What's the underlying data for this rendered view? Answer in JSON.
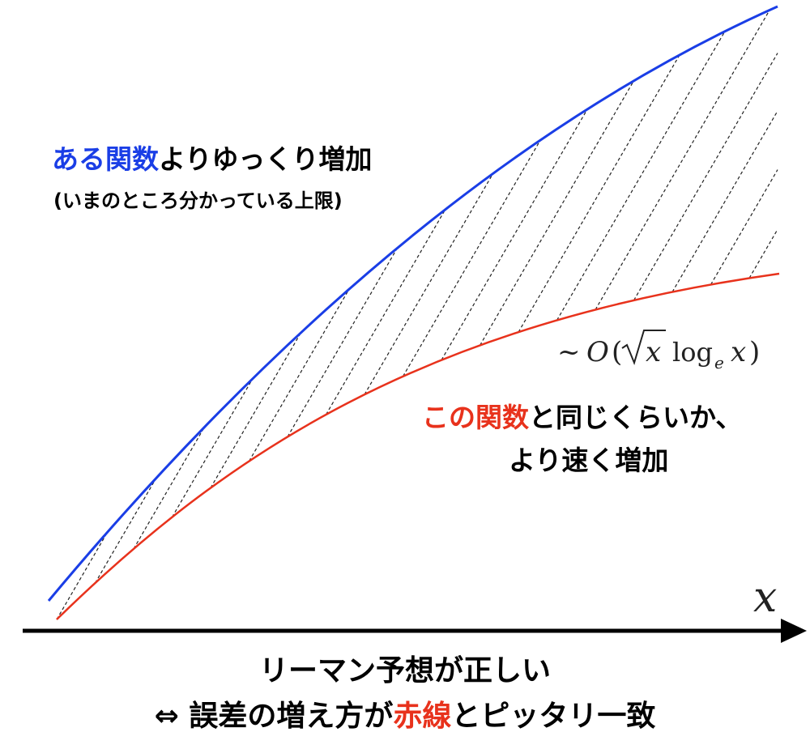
{
  "colors": {
    "blue": "#1a3ee6",
    "red": "#e8321c",
    "black": "#000000",
    "hatch": "#222222"
  },
  "axis": {
    "label": "x"
  },
  "upper_label": {
    "line1_highlight": "ある関数",
    "line1_rest": "よりゆっくり増加",
    "line2": "(いまのところ分かっている上限)"
  },
  "formula": {
    "tilde": "~",
    "O": "O",
    "open_paren": "(",
    "x_in_sqrt": "x",
    "log": "log",
    "log_base": "e",
    "x_arg": "x",
    "close_paren": ")"
  },
  "lower_label": {
    "line1_highlight": "この関数",
    "line1_rest": "と同じくらいか、",
    "line2": "より速く増加"
  },
  "bottom_caption": {
    "line1": "リーマン予想が正しい",
    "line2_prefix": "⇔ 誤差の増え方が",
    "line2_highlight": "赤線",
    "line2_suffix": "とピッタリ一致"
  }
}
